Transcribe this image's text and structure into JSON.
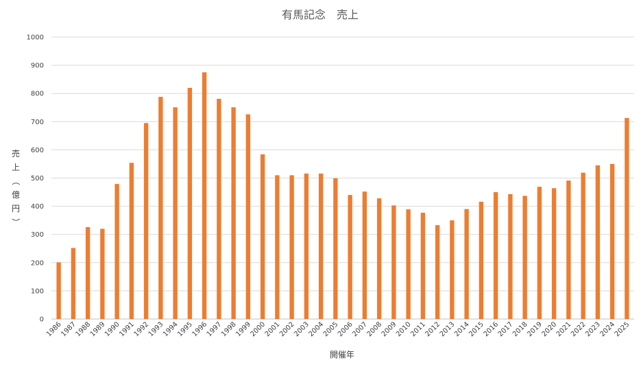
{
  "chart_data": {
    "type": "bar",
    "title": "有馬記念　売上",
    "xlabel": "開催年",
    "ylabel": "売上（億円）",
    "ylim": [
      0,
      1000
    ],
    "ytick_step": 100,
    "grid": true,
    "bar_color": "#ED7D31",
    "categories": [
      "1986",
      "1987",
      "1988",
      "1989",
      "1990",
      "1991",
      "1992",
      "1993",
      "1994",
      "1995",
      "1996",
      "1997",
      "1998",
      "1999",
      "2000",
      "2001",
      "2002",
      "2003",
      "2004",
      "2005",
      "2006",
      "2007",
      "2008",
      "2009",
      "2010",
      "2011",
      "2012",
      "2013",
      "2014",
      "2015",
      "2016",
      "2017",
      "2018",
      "2019",
      "2020",
      "2021",
      "2022",
      "2023",
      "2024",
      "2025"
    ],
    "values": [
      201,
      252,
      326,
      320,
      479,
      554,
      695,
      788,
      751,
      820,
      875,
      781,
      751,
      726,
      584,
      510,
      510,
      516,
      516,
      499,
      440,
      452,
      428,
      403,
      389,
      377,
      333,
      350,
      390,
      416,
      450,
      443,
      437,
      469,
      464,
      491,
      519,
      545,
      550,
      713
    ]
  }
}
